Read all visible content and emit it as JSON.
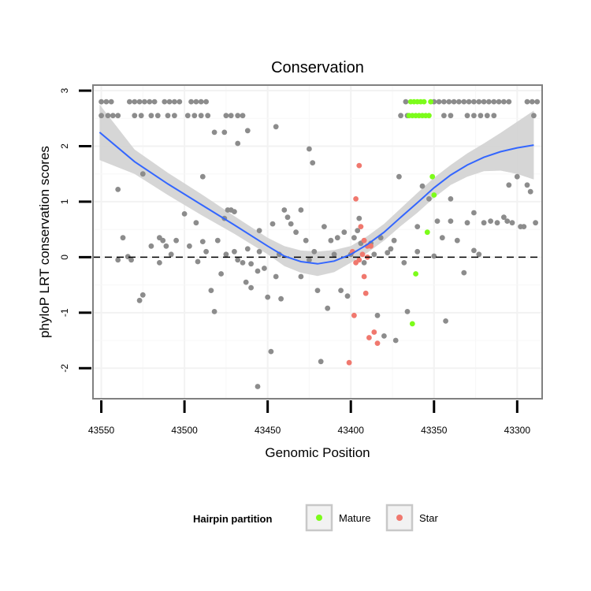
{
  "chart_data": {
    "type": "scatter",
    "title": "Conservation",
    "xlabel": "Genomic Position",
    "ylabel": "phyloP LRT conservation scores",
    "xlim": [
      43555,
      43285
    ],
    "ylim": [
      -2.55,
      3.1
    ],
    "x_reversed": true,
    "x_ticks": [
      43550,
      43500,
      43450,
      43400,
      43350,
      43300
    ],
    "y_ticks": [
      -2,
      -1,
      0,
      1,
      2,
      3
    ],
    "reference_line": {
      "y": 0,
      "style": "dashed"
    },
    "legend": {
      "title": "Hairpin partition",
      "position": "bottom",
      "entries": [
        {
          "name": "Mature",
          "color": "#7cfc1a"
        },
        {
          "name": "Star",
          "color": "#f0786e"
        }
      ]
    },
    "colors": {
      "Other": "#8c8c8c",
      "Mature": "#7cfc1a",
      "Star": "#f0786e",
      "smooth": "#3366ff",
      "band": "#d2d2d2"
    },
    "smooth": {
      "x": [
        43551,
        43530,
        43510,
        43490,
        43470,
        43450,
        43440,
        43430,
        43420,
        43410,
        43400,
        43390,
        43380,
        43370,
        43360,
        43350,
        43340,
        43330,
        43320,
        43310,
        43300,
        43290
      ],
      "y": [
        2.25,
        1.72,
        1.32,
        0.95,
        0.58,
        0.2,
        0.02,
        -0.08,
        -0.12,
        -0.07,
        0.05,
        0.23,
        0.45,
        0.72,
        0.98,
        1.25,
        1.48,
        1.66,
        1.8,
        1.9,
        1.97,
        2.02
      ],
      "lower": [
        1.75,
        1.5,
        1.12,
        0.76,
        0.42,
        0.05,
        -0.16,
        -0.28,
        -0.34,
        -0.27,
        -0.1,
        0.08,
        0.3,
        0.56,
        0.8,
        1.07,
        1.3,
        1.45,
        1.55,
        1.56,
        1.5,
        1.4
      ],
      "upper": [
        2.75,
        1.94,
        1.52,
        1.14,
        0.74,
        0.35,
        0.2,
        0.12,
        0.1,
        0.13,
        0.2,
        0.38,
        0.6,
        0.88,
        1.16,
        1.43,
        1.66,
        1.87,
        2.05,
        2.24,
        2.44,
        2.64
      ]
    },
    "series": [
      {
        "name": "Other",
        "points": [
          [
            43550,
            2.8
          ],
          [
            43547,
            2.8
          ],
          [
            43544,
            2.8
          ],
          [
            43550,
            2.55
          ],
          [
            43546,
            2.55
          ],
          [
            43543,
            2.55
          ],
          [
            43540,
            2.55
          ],
          [
            43533,
            2.8
          ],
          [
            43530,
            2.8
          ],
          [
            43527,
            2.8
          ],
          [
            43524,
            2.8
          ],
          [
            43521,
            2.8
          ],
          [
            43518,
            2.8
          ],
          [
            43530,
            2.55
          ],
          [
            43526,
            2.55
          ],
          [
            43520,
            2.55
          ],
          [
            43516,
            2.55
          ],
          [
            43512,
            2.8
          ],
          [
            43509,
            2.8
          ],
          [
            43506,
            2.8
          ],
          [
            43503,
            2.8
          ],
          [
            43510,
            2.55
          ],
          [
            43506,
            2.55
          ],
          [
            43496,
            2.8
          ],
          [
            43493,
            2.8
          ],
          [
            43490,
            2.8
          ],
          [
            43487,
            2.8
          ],
          [
            43498,
            2.55
          ],
          [
            43494,
            2.55
          ],
          [
            43490,
            2.55
          ],
          [
            43486,
            2.55
          ],
          [
            43475,
            2.55
          ],
          [
            43472,
            2.55
          ],
          [
            43468,
            2.55
          ],
          [
            43465,
            2.55
          ],
          [
            43370,
            2.55
          ],
          [
            43367,
            2.8
          ],
          [
            43366,
            2.55
          ],
          [
            43350,
            2.8
          ],
          [
            43347,
            2.8
          ],
          [
            43344,
            2.8
          ],
          [
            43341,
            2.8
          ],
          [
            43338,
            2.8
          ],
          [
            43335,
            2.8
          ],
          [
            43332,
            2.8
          ],
          [
            43329,
            2.8
          ],
          [
            43326,
            2.8
          ],
          [
            43323,
            2.8
          ],
          [
            43320,
            2.8
          ],
          [
            43317,
            2.8
          ],
          [
            43314,
            2.8
          ],
          [
            43311,
            2.8
          ],
          [
            43308,
            2.8
          ],
          [
            43305,
            2.8
          ],
          [
            43344,
            2.55
          ],
          [
            43340,
            2.55
          ],
          [
            43330,
            2.55
          ],
          [
            43326,
            2.55
          ],
          [
            43322,
            2.55
          ],
          [
            43318,
            2.55
          ],
          [
            43314,
            2.55
          ],
          [
            43294,
            2.8
          ],
          [
            43291,
            2.8
          ],
          [
            43288,
            2.8
          ],
          [
            43290,
            2.55
          ],
          [
            43540,
            1.22
          ],
          [
            43525,
            1.5
          ],
          [
            43482,
            2.25
          ],
          [
            43476,
            2.25
          ],
          [
            43468,
            2.05
          ],
          [
            43462,
            2.28
          ],
          [
            43445,
            2.35
          ],
          [
            43425,
            1.95
          ],
          [
            43423,
            1.7
          ],
          [
            43489,
            1.45
          ],
          [
            43537,
            0.35
          ],
          [
            43534,
            0.01
          ],
          [
            43540,
            -0.05
          ],
          [
            43532,
            -0.05
          ],
          [
            43527,
            -0.78
          ],
          [
            43525,
            -0.68
          ],
          [
            43520,
            0.2
          ],
          [
            43515,
            0.35
          ],
          [
            43513,
            0.3
          ],
          [
            43511,
            0.2
          ],
          [
            43508,
            0.05
          ],
          [
            43500,
            0.78
          ],
          [
            43497,
            0.2
          ],
          [
            43493,
            0.62
          ],
          [
            43489,
            0.28
          ],
          [
            43487,
            0.1
          ],
          [
            43484,
            -0.6
          ],
          [
            43482,
            -0.98
          ],
          [
            43480,
            0.3
          ],
          [
            43478,
            -0.3
          ],
          [
            43476,
            0.7
          ],
          [
            43474,
            0.85
          ],
          [
            43472,
            0.85
          ],
          [
            43470,
            0.82
          ],
          [
            43470,
            0.1
          ],
          [
            43468,
            -0.05
          ],
          [
            43465,
            -0.1
          ],
          [
            43463,
            -0.45
          ],
          [
            43460,
            -0.55
          ],
          [
            43456,
            -0.25
          ],
          [
            43455,
            0.48
          ],
          [
            43452,
            -0.2
          ],
          [
            43450,
            -0.72
          ],
          [
            43447,
            0.6
          ],
          [
            43445,
            -0.35
          ],
          [
            43442,
            -0.75
          ],
          [
            43448,
            -1.7
          ],
          [
            43456,
            -2.33
          ],
          [
            43440,
            0.85
          ],
          [
            43438,
            0.72
          ],
          [
            43436,
            0.6
          ],
          [
            43433,
            0.45
          ],
          [
            43430,
            -0.35
          ],
          [
            43427,
            0.3
          ],
          [
            43425,
            -0.05
          ],
          [
            43422,
            0.1
          ],
          [
            43420,
            -0.6
          ],
          [
            43418,
            -1.88
          ],
          [
            43416,
            0.55
          ],
          [
            43414,
            -0.92
          ],
          [
            43412,
            0.3
          ],
          [
            43410,
            0.05
          ],
          [
            43408,
            0.35
          ],
          [
            43406,
            -0.6
          ],
          [
            43404,
            0.45
          ],
          [
            43402,
            -0.7
          ],
          [
            43400,
            0.05
          ],
          [
            43398,
            0.35
          ],
          [
            43396,
            0.48
          ],
          [
            43394,
            0.25
          ],
          [
            43392,
            -0.1
          ],
          [
            43388,
            0.25
          ],
          [
            43386,
            0.05
          ],
          [
            43384,
            -1.05
          ],
          [
            43382,
            0.35
          ],
          [
            43380,
            -1.42
          ],
          [
            43378,
            0.08
          ],
          [
            43376,
            0.15
          ],
          [
            43374,
            0.3
          ],
          [
            43373,
            -1.5
          ],
          [
            43371,
            1.45
          ],
          [
            43368,
            -0.1
          ],
          [
            43366,
            -0.98
          ],
          [
            43360,
            0.1
          ],
          [
            43357,
            1.28
          ],
          [
            43353,
            1.05
          ],
          [
            43350,
            0.02
          ],
          [
            43348,
            0.65
          ],
          [
            43345,
            0.35
          ],
          [
            43343,
            -1.15
          ],
          [
            43340,
            0.65
          ],
          [
            43336,
            0.3
          ],
          [
            43332,
            -0.28
          ],
          [
            43330,
            0.62
          ],
          [
            43326,
            0.12
          ],
          [
            43323,
            0.05
          ],
          [
            43320,
            0.62
          ],
          [
            43316,
            0.65
          ],
          [
            43312,
            0.62
          ],
          [
            43308,
            0.72
          ],
          [
            43306,
            0.65
          ],
          [
            43305,
            1.3
          ],
          [
            43303,
            0.62
          ],
          [
            43300,
            1.45
          ],
          [
            43298,
            0.55
          ],
          [
            43296,
            0.55
          ],
          [
            43294,
            1.3
          ],
          [
            43292,
            1.18
          ],
          [
            43289,
            0.62
          ],
          [
            43326,
            0.8
          ],
          [
            43340,
            1.05
          ],
          [
            43360,
            0.55
          ],
          [
            43395,
            0.7
          ],
          [
            43430,
            0.85
          ],
          [
            43462,
            0.15
          ],
          [
            43475,
            0.05
          ],
          [
            43492,
            -0.08
          ],
          [
            43505,
            0.3
          ],
          [
            43515,
            -0.1
          ],
          [
            43443,
            0.05
          ],
          [
            43455,
            0.1
          ],
          [
            43460,
            -0.12
          ]
        ]
      },
      {
        "name": "Mature",
        "points": [
          [
            43364,
            2.8
          ],
          [
            43362,
            2.8
          ],
          [
            43360,
            2.8
          ],
          [
            43358,
            2.8
          ],
          [
            43356,
            2.8
          ],
          [
            43352,
            2.8
          ],
          [
            43365,
            2.55
          ],
          [
            43363,
            2.55
          ],
          [
            43361,
            2.55
          ],
          [
            43359,
            2.55
          ],
          [
            43357,
            2.55
          ],
          [
            43355,
            2.55
          ],
          [
            43353,
            2.55
          ],
          [
            43351,
            1.45
          ],
          [
            43350,
            1.12
          ],
          [
            43354,
            0.45
          ],
          [
            43361,
            -0.3
          ],
          [
            43363,
            -1.2
          ]
        ]
      },
      {
        "name": "Star",
        "points": [
          [
            43395,
            1.65
          ],
          [
            43397,
            1.05
          ],
          [
            43394,
            0.55
          ],
          [
            43392,
            0.3
          ],
          [
            43390,
            0.2
          ],
          [
            43388,
            0.2
          ],
          [
            43399,
            0.1
          ],
          [
            43397,
            -0.1
          ],
          [
            43393,
            0.05
          ],
          [
            43390,
            0
          ],
          [
            43392,
            -0.35
          ],
          [
            43391,
            -0.65
          ],
          [
            43398,
            -1.05
          ],
          [
            43389,
            -1.45
          ],
          [
            43386,
            -1.35
          ],
          [
            43384,
            -1.55
          ],
          [
            43401,
            -1.9
          ],
          [
            43395,
            -0.05
          ]
        ]
      }
    ]
  }
}
